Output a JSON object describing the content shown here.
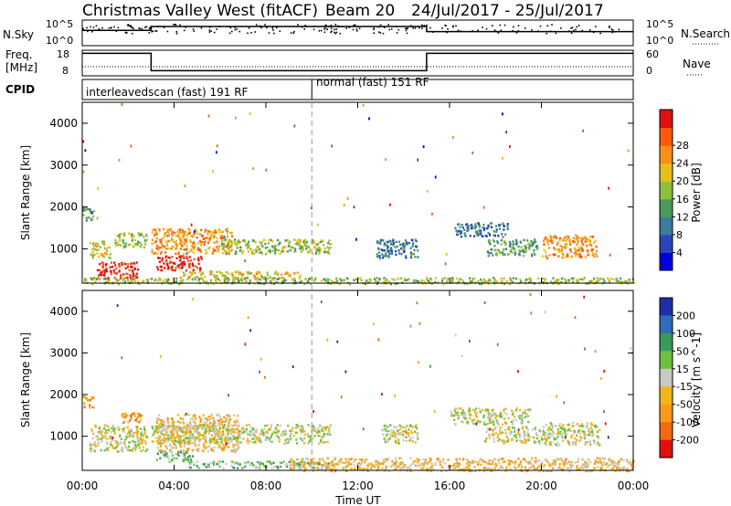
{
  "chart_data": {
    "type": "heatmap",
    "title": "Christmas Valley West (fitACF)",
    "beam": "Beam 20",
    "date_range": "24/Jul/2017 - 25/Jul/2017",
    "xlabel": "Time UT",
    "x_tick_labels": [
      "00:00",
      "04:00",
      "08:00",
      "12:00",
      "16:00",
      "20:00",
      "00:00"
    ],
    "x_ticks_hours": [
      0,
      4,
      8,
      12,
      16,
      20,
      24
    ],
    "xlim_hours": [
      0,
      24
    ],
    "mode_change_hour": 10,
    "top_panels": {
      "nsky_label": "N.Sky",
      "nsky_ticks": [
        "10^5",
        "10^0"
      ],
      "nsearch_label": "N.Search",
      "nsearch_ticks": [
        "10^5",
        "10^0"
      ],
      "freq_label": "Freq.",
      "freq_unit": "[MHz]",
      "freq_ticks": [
        "18",
        "8"
      ],
      "nave_label": "Nave",
      "nave_ticks": [
        "60",
        "0"
      ],
      "cpid_label": "CPID",
      "cpid_segments": [
        {
          "label": "interleavedscan (fast) 191 RF",
          "start_hour": 0,
          "end_hour": 10
        },
        {
          "label": "normal (fast) 151 RF",
          "start_hour": 10,
          "end_hour": 24
        }
      ],
      "freq_steps": [
        {
          "start_hour": 0,
          "end_hour": 3,
          "level": 0.88
        },
        {
          "start_hour": 3,
          "end_hour": 15,
          "level": 0.2
        },
        {
          "start_hour": 15,
          "end_hour": 24,
          "level": 0.88
        }
      ],
      "nsky_levels": [
        {
          "start_hour": 0,
          "end_hour": 3,
          "level": 0.6
        },
        {
          "start_hour": 3,
          "end_hour": 15,
          "level": 0.75
        },
        {
          "start_hour": 15,
          "end_hour": 24,
          "level": 0.55
        }
      ]
    },
    "power_panel": {
      "ylabel": "Slant Range [km]",
      "y_tick_labels": [
        "1000",
        "2000",
        "3000",
        "4000"
      ],
      "y_ticks": [
        1000,
        2000,
        3000,
        4000
      ],
      "ylim": [
        180,
        4500
      ],
      "colorbar_label": "Power [dB]",
      "colorbar_ticks": [
        "4",
        "8",
        "12",
        "16",
        "20",
        "24",
        "28"
      ],
      "colorbar_colors": [
        "#0000dd",
        "#2a46b8",
        "#3a7d9a",
        "#4a9a5a",
        "#8fbf3a",
        "#e5c01a",
        "#f7901a",
        "#ff5a10",
        "#e01010"
      ]
    },
    "velocity_panel": {
      "ylabel": "Slant Range [km]",
      "y_tick_labels": [
        "1000",
        "2000",
        "3000",
        "4000"
      ],
      "y_ticks": [
        1000,
        2000,
        3000,
        4000
      ],
      "ylim": [
        180,
        4500
      ],
      "colorbar_label": "Velocity [m s^-1]",
      "colorbar_ticks": [
        "200",
        "100",
        "50",
        "15",
        "-15",
        "-50",
        "-100",
        "-200"
      ],
      "colorbar_colors": [
        "#1f2fa8",
        "#2f6db8",
        "#3a9a5a",
        "#6dc040",
        "#c8c8c8",
        "#f2b51a",
        "#f79a1a",
        "#f26a10",
        "#e01010"
      ]
    },
    "power_echo_regions": [
      {
        "t0": 0.0,
        "t1": 0.5,
        "r0": 1700,
        "r1": 2000,
        "level": 3
      },
      {
        "t0": 0.3,
        "t1": 1.2,
        "r0": 800,
        "r1": 1200,
        "level": 5
      },
      {
        "t0": 0.6,
        "t1": 2.4,
        "r0": 300,
        "r1": 700,
        "level": 8
      },
      {
        "t0": 1.4,
        "t1": 2.8,
        "r0": 1050,
        "r1": 1400,
        "level": 4
      },
      {
        "t0": 3.0,
        "t1": 6.5,
        "r0": 900,
        "r1": 1500,
        "level": 6
      },
      {
        "t0": 3.2,
        "t1": 5.2,
        "r0": 500,
        "r1": 850,
        "level": 8
      },
      {
        "t0": 4.2,
        "t1": 9.5,
        "r0": 300,
        "r1": 480,
        "level": 5
      },
      {
        "t0": 6.0,
        "t1": 10.8,
        "r0": 900,
        "r1": 1250,
        "level": 4
      },
      {
        "t0": 0.0,
        "t1": 24.0,
        "r0": 180,
        "r1": 330,
        "level": 4
      },
      {
        "t0": 12.8,
        "t1": 14.6,
        "r0": 800,
        "r1": 1250,
        "level": 2
      },
      {
        "t0": 16.2,
        "t1": 18.5,
        "r0": 1300,
        "r1": 1650,
        "level": 2
      },
      {
        "t0": 17.6,
        "t1": 19.8,
        "r0": 850,
        "r1": 1250,
        "level": 3
      },
      {
        "t0": 20.0,
        "t1": 22.4,
        "r0": 800,
        "r1": 1350,
        "level": 6
      }
    ],
    "velocity_echo_regions": [
      {
        "t0": 0.0,
        "t1": 0.5,
        "r0": 1700,
        "r1": 2000,
        "level": 6
      },
      {
        "t0": 0.3,
        "t1": 2.8,
        "r0": 650,
        "r1": 1300,
        "level": 4
      },
      {
        "t0": 1.6,
        "t1": 2.6,
        "r0": 1350,
        "r1": 1600,
        "level": 6
      },
      {
        "t0": 3.2,
        "t1": 6.8,
        "r0": 650,
        "r1": 1550,
        "level": 5
      },
      {
        "t0": 3.0,
        "t1": 10.8,
        "r0": 850,
        "r1": 1300,
        "level": 4
      },
      {
        "t0": 3.2,
        "t1": 4.8,
        "r0": 400,
        "r1": 650,
        "level": 3
      },
      {
        "t0": 4.5,
        "t1": 11.0,
        "r0": 250,
        "r1": 420,
        "level": 3
      },
      {
        "t0": 9.0,
        "t1": 24.0,
        "r0": 180,
        "r1": 500,
        "level": 5
      },
      {
        "t0": 13.0,
        "t1": 14.6,
        "r0": 850,
        "r1": 1300,
        "level": 4
      },
      {
        "t0": 16.0,
        "t1": 19.5,
        "r0": 1300,
        "r1": 1700,
        "level": 4
      },
      {
        "t0": 17.5,
        "t1": 20.0,
        "r0": 850,
        "r1": 1250,
        "level": 4
      },
      {
        "t0": 20.0,
        "t1": 22.5,
        "r0": 800,
        "r1": 1350,
        "level": 4
      }
    ]
  }
}
